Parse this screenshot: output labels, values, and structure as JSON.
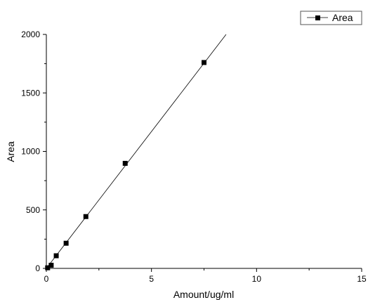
{
  "chart_data": {
    "type": "scatter",
    "xlabel": "Amount/ug/ml",
    "ylabel": "Area",
    "xlim": [
      0,
      15
    ],
    "ylim": [
      0,
      2000
    ],
    "x_ticks": [
      0,
      5,
      10,
      15
    ],
    "y_ticks": [
      0,
      500,
      1000,
      1500,
      2000
    ],
    "x_tick_labels": [
      "0",
      "5",
      "10",
      "15"
    ],
    "y_tick_labels": [
      "0",
      "500",
      "1000",
      "1500",
      "2000"
    ],
    "grid": false,
    "legend": {
      "position": "top-right"
    },
    "series": [
      {
        "name": "Area",
        "marker": "square",
        "color": "#000000",
        "x": [
          0.06,
          0.23,
          0.47,
          0.94,
          1.88,
          3.75,
          7.5
        ],
        "y": [
          5,
          27,
          108,
          215,
          443,
          898,
          1760
        ]
      }
    ],
    "fit_line": {
      "color": "#000000",
      "x": [
        0,
        8.55
      ],
      "y": [
        0,
        2000
      ]
    }
  }
}
